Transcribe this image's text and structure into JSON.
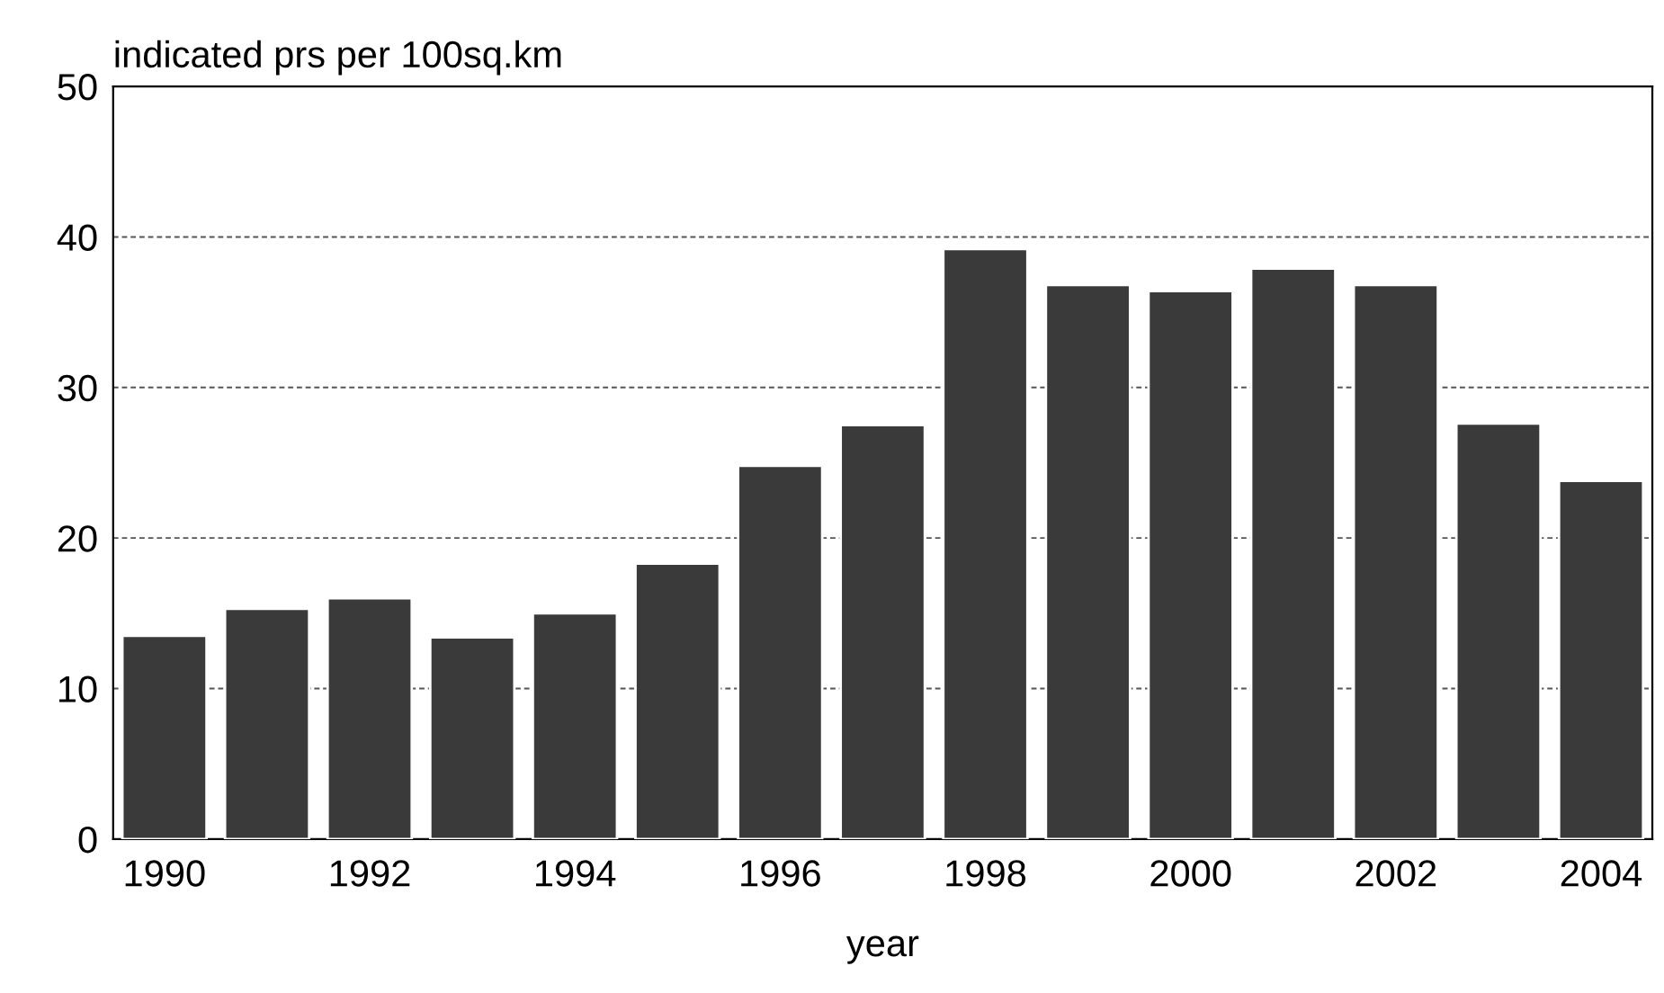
{
  "chart_data": {
    "type": "bar",
    "ylabel": "indicated prs per 100sq.km",
    "xlabel": "year",
    "categories": [
      "1990",
      null,
      "1992",
      null,
      "1994",
      null,
      "1996",
      null,
      "1998",
      null,
      "2000",
      null,
      "2002",
      null,
      "2004"
    ],
    "values": [
      13.5,
      15.3,
      16.0,
      13.4,
      15.0,
      18.3,
      24.8,
      27.5,
      39.2,
      36.8,
      36.4,
      37.9,
      36.8,
      27.6,
      23.8
    ],
    "color": "#3a3a3a",
    "ylim": [
      0,
      50
    ],
    "yticks": [
      0,
      10,
      20,
      30,
      40,
      50
    ],
    "grid": "y"
  }
}
